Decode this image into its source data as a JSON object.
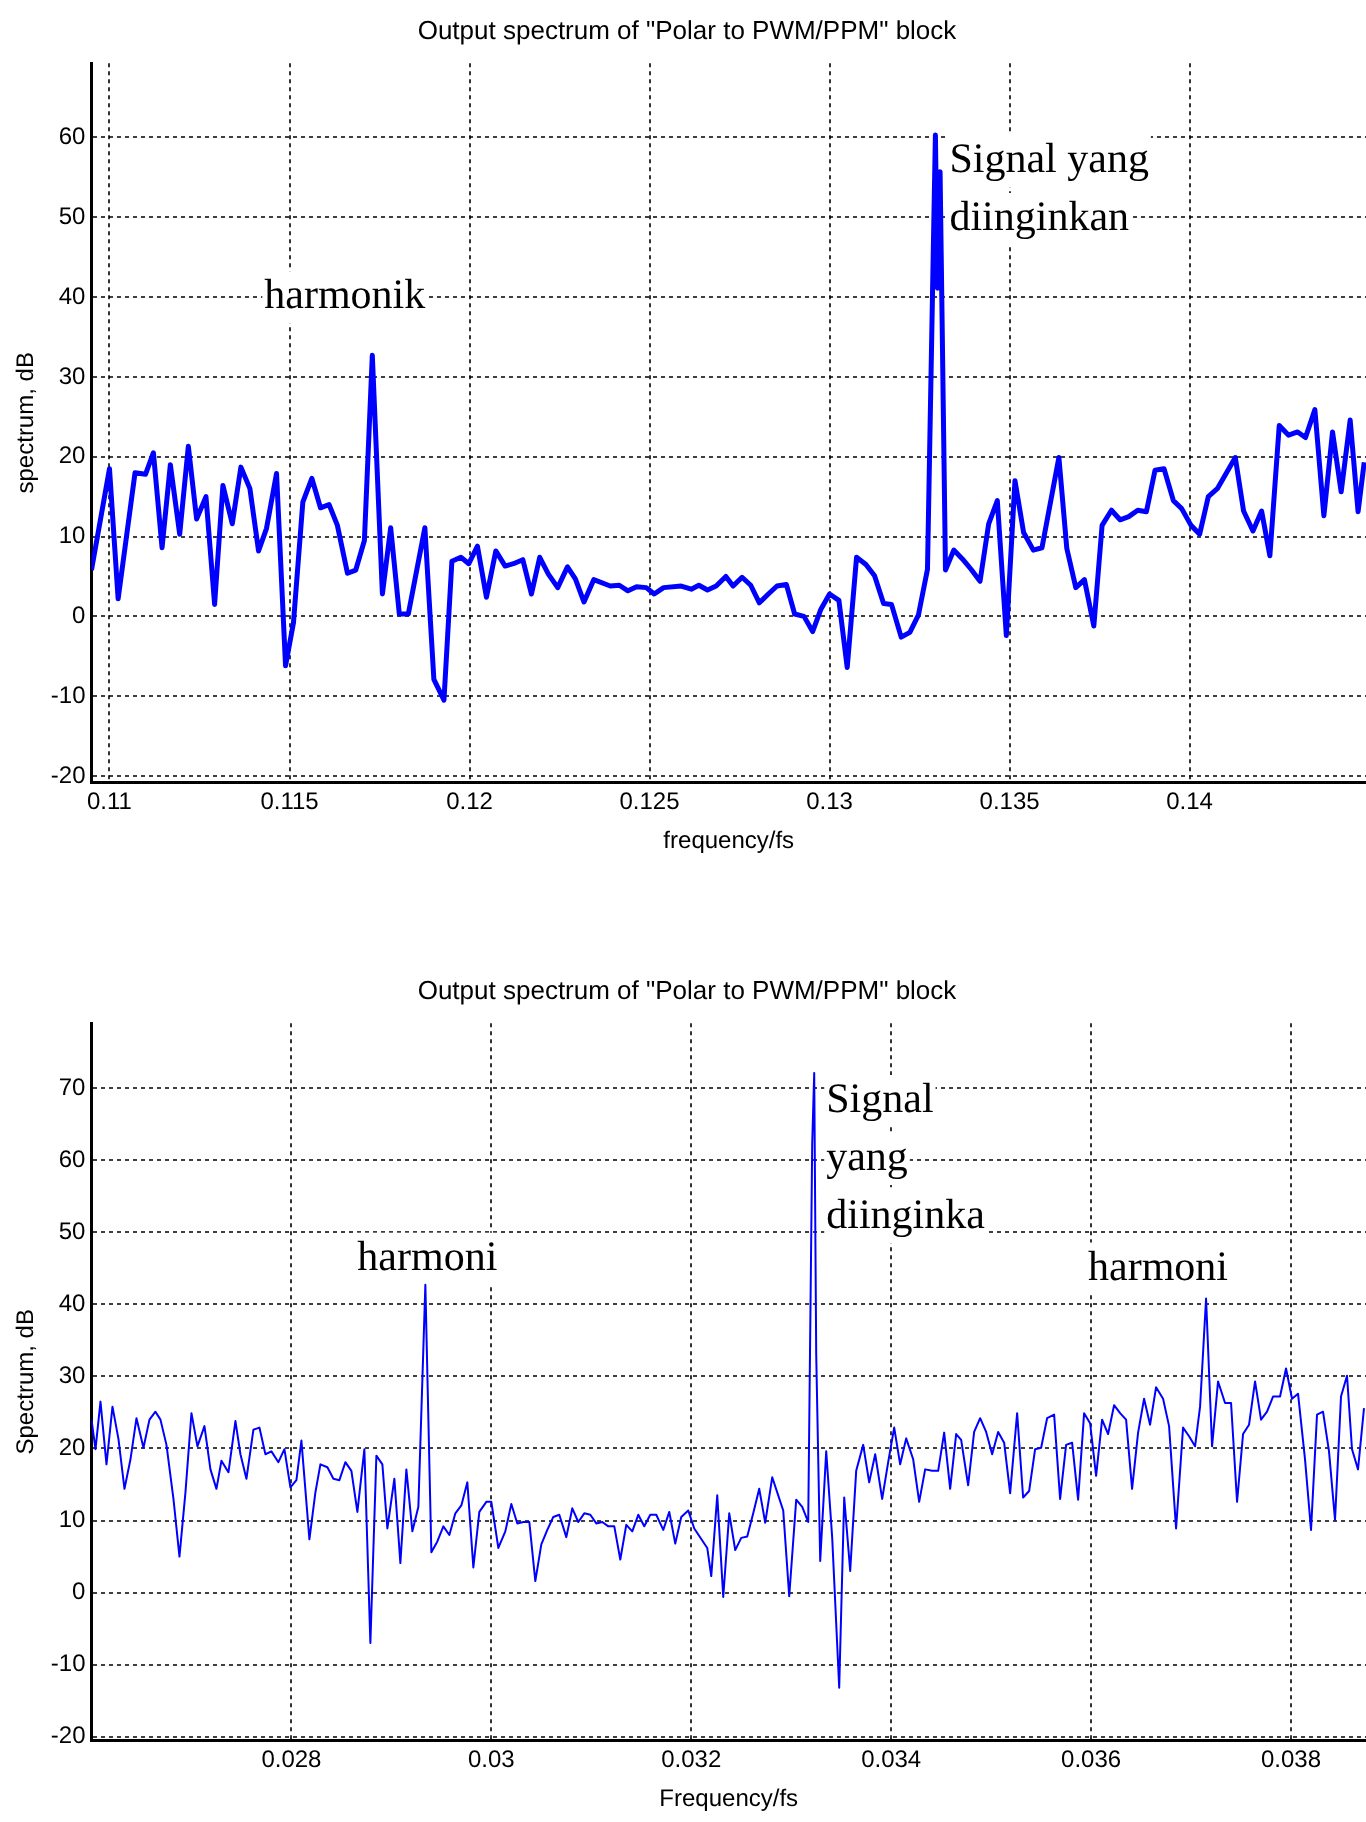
{
  "chart_data": [
    {
      "type": "line",
      "title": "Output spectrum of \"Polar to PWM/PPM\" block",
      "xlabel": "frequency/fs",
      "ylabel": "spectrum, dB",
      "color": "#0000ff",
      "grid": true,
      "xlim": [
        0.1095,
        0.1449
      ],
      "ylim": [
        -20.8,
        69.3
      ],
      "xticks": [
        0.11,
        0.115,
        0.12,
        0.125,
        0.13,
        0.135,
        0.14
      ],
      "yticks": [
        -20,
        -10,
        0,
        10,
        20,
        30,
        40,
        50,
        60
      ],
      "x": [
        0.1095,
        0.11,
        0.11024,
        0.11071,
        0.111,
        0.11122,
        0.11146,
        0.11169,
        0.11195,
        0.11219,
        0.11242,
        0.11268,
        0.11292,
        0.11315,
        0.11341,
        0.11365,
        0.1139,
        0.11414,
        0.11436,
        0.11464,
        0.11489,
        0.11511,
        0.11537,
        0.11562,
        0.11586,
        0.1161,
        0.11633,
        0.11661,
        0.11684,
        0.11708,
        0.1173,
        0.11758,
        0.11781,
        0.11805,
        0.1183,
        0.11876,
        0.11901,
        0.11929,
        0.11951,
        0.11976,
        0.11998,
        0.12022,
        0.12047,
        0.12073,
        0.12099,
        0.12122,
        0.12148,
        0.12172,
        0.12195,
        0.12219,
        0.12245,
        0.12272,
        0.12294,
        0.12318,
        0.12345,
        0.12391,
        0.12416,
        0.1244,
        0.12464,
        0.12491,
        0.12513,
        0.12539,
        0.12588,
        0.12616,
        0.12637,
        0.12661,
        0.12685,
        0.12712,
        0.12732,
        0.12757,
        0.12781,
        0.12805,
        0.1283,
        0.12854,
        0.1288,
        0.12903,
        0.12929,
        0.12953,
        0.12976,
        0.13,
        0.13026,
        0.13049,
        0.13075,
        0.13101,
        0.13125,
        0.1315,
        0.13172,
        0.13199,
        0.13223,
        0.13247,
        0.13272,
        0.13294,
        0.133,
        0.13307,
        0.13322,
        0.13345,
        0.13369,
        0.13393,
        0.13418,
        0.13442,
        0.13466,
        0.13491,
        0.13515,
        0.13539,
        0.13566,
        0.1359,
        0.13637,
        0.13659,
        0.13684,
        0.13708,
        0.13734,
        0.13757,
        0.13783,
        0.13807,
        0.13831,
        0.13856,
        0.1388,
        0.13904,
        0.13929,
        0.13955,
        0.13978,
        0.14004,
        0.14028,
        0.14052,
        0.14077,
        0.14127,
        0.1415,
        0.14176,
        0.142,
        0.14223,
        0.14249,
        0.14275,
        0.143,
        0.14322,
        0.14348,
        0.14373,
        0.14397,
        0.14421,
        0.14446,
        0.14468,
        0.14485
      ],
      "values": [
        5.8,
        18.5,
        2.2,
        18,
        17.8,
        20.5,
        8.6,
        19,
        10.3,
        21.3,
        12.2,
        15,
        1.5,
        16.4,
        11.6,
        18.7,
        16,
        8.2,
        11,
        17.9,
        -6.2,
        -0.8,
        14.3,
        17.3,
        13.6,
        14,
        11.4,
        5.4,
        5.8,
        9.5,
        32.7,
        2.8,
        11.1,
        0.3,
        0.3,
        11.1,
        -7.9,
        -10.5,
        6.9,
        7.4,
        6.6,
        8.8,
        2.4,
        8.2,
        6.3,
        6.6,
        7.1,
        2.8,
        7.4,
        5.3,
        3.6,
        6.2,
        4.7,
        1.8,
        4.6,
        3.8,
        3.9,
        3.2,
        3.7,
        3.6,
        2.8,
        3.6,
        3.8,
        3.4,
        3.9,
        3.3,
        3.8,
        5,
        3.8,
        4.9,
        3.9,
        1.7,
        2.8,
        3.8,
        4,
        0.3,
        0,
        -1.9,
        0.9,
        2.8,
        2,
        -6.4,
        7.4,
        6.5,
        5.1,
        1.6,
        1.5,
        -2.6,
        -2,
        0.2,
        5.9,
        60.3,
        41.1,
        55.7,
        5.8,
        8.3,
        7.2,
        5.9,
        4.4,
        11.6,
        14.5,
        -2.4,
        17,
        10.5,
        8.3,
        8.6,
        19.9,
        8.5,
        3.6,
        4.6,
        -1.2,
        11.4,
        13.3,
        12.1,
        12.5,
        13.3,
        13.1,
        18.3,
        18.5,
        14.5,
        13.5,
        11.4,
        10.3,
        15,
        16,
        19.9,
        13.2,
        10.7,
        13.2,
        7.6,
        23.9,
        22.7,
        23.1,
        22.4,
        25.9,
        12.6,
        23.1,
        15.6,
        24.6,
        13.1,
        19.3
      ],
      "annotations": [
        {
          "text": "harmonik",
          "x": 0.1173,
          "y": 32.7
        },
        {
          "text": "Signal yang diinginkan",
          "x": 0.13294,
          "y": 60.3
        }
      ]
    },
    {
      "type": "line",
      "title": "Output spectrum of \"Polar to PWM/PPM\" block",
      "xlabel": "Frequency/fs",
      "ylabel": "Spectrum, dB",
      "color": "#0000ff",
      "grid": true,
      "xlim": [
        0.026,
        0.03875
      ],
      "ylim": [
        -20.5,
        79
      ],
      "xticks": [
        0.028,
        0.03,
        0.032,
        0.034,
        0.036,
        0.038
      ],
      "yticks": [
        -20,
        -10,
        0,
        10,
        20,
        30,
        40,
        50,
        60,
        70
      ],
      "x": [
        0.026,
        0.02604,
        0.02609,
        0.02615,
        0.02621,
        0.02627,
        0.02633,
        0.02639,
        0.02645,
        0.02652,
        0.02658,
        0.02664,
        0.02669,
        0.02675,
        0.02682,
        0.02688,
        0.02694,
        0.027,
        0.02706,
        0.02713,
        0.02719,
        0.02725,
        0.0273,
        0.02737,
        0.02744,
        0.02749,
        0.02755,
        0.02762,
        0.02768,
        0.02774,
        0.0278,
        0.02787,
        0.02793,
        0.02799,
        0.02805,
        0.0281,
        0.02818,
        0.02824,
        0.02829,
        0.02836,
        0.02842,
        0.02848,
        0.02854,
        0.0286,
        0.02866,
        0.02873,
        0.02879,
        0.02885,
        0.02891,
        0.02896,
        0.02903,
        0.02909,
        0.02915,
        0.02921,
        0.02927,
        0.02934,
        0.0294,
        0.02946,
        0.02952,
        0.02958,
        0.02964,
        0.0297,
        0.02976,
        0.02982,
        0.02988,
        0.02995,
        0.03,
        0.03007,
        0.03014,
        0.0302,
        0.03026,
        0.03032,
        0.03038,
        0.03044,
        0.0305,
        0.03056,
        0.03062,
        0.03068,
        0.03075,
        0.03081,
        0.03087,
        0.03093,
        0.03099,
        0.03105,
        0.03111,
        0.03117,
        0.03123,
        0.03129,
        0.03135,
        0.03141,
        0.03147,
        0.03153,
        0.03159,
        0.03165,
        0.03172,
        0.03178,
        0.03184,
        0.0319,
        0.03197,
        0.03203,
        0.03216,
        0.0322,
        0.03226,
        0.03232,
        0.03238,
        0.03244,
        0.0325,
        0.03256,
        0.03262,
        0.03268,
        0.03274,
        0.03281,
        0.03287,
        0.03292,
        0.03298,
        0.03305,
        0.03311,
        0.03317,
        0.03321,
        0.03323,
        0.03325,
        0.03329,
        0.03335,
        0.03341,
        0.03348,
        0.03353,
        0.03359,
        0.03365,
        0.03372,
        0.03378,
        0.03384,
        0.03391,
        0.03397,
        0.03403,
        0.03409,
        0.03415,
        0.03422,
        0.03428,
        0.03434,
        0.03441,
        0.03447,
        0.03453,
        0.03459,
        0.03465,
        0.0347,
        0.03477,
        0.03483,
        0.03489,
        0.03495,
        0.03501,
        0.03507,
        0.03513,
        0.03519,
        0.03526,
        0.03532,
        0.03538,
        0.03544,
        0.0355,
        0.03556,
        0.03563,
        0.03569,
        0.03575,
        0.03581,
        0.03587,
        0.03593,
        0.03599,
        0.03605,
        0.03611,
        0.03617,
        0.03623,
        0.03629,
        0.03635,
        0.03641,
        0.03647,
        0.03653,
        0.03659,
        0.03665,
        0.03672,
        0.03678,
        0.03685,
        0.03692,
        0.03698,
        0.03704,
        0.03709,
        0.03715,
        0.03721,
        0.03727,
        0.03734,
        0.0374,
        0.03746,
        0.03752,
        0.03758,
        0.03764,
        0.0377,
        0.03776,
        0.03782,
        0.03789,
        0.03795,
        0.03801,
        0.03807,
        0.03814,
        0.0382,
        0.03826,
        0.03832,
        0.03838,
        0.03844,
        0.0385,
        0.03856,
        0.03861,
        0.03867,
        0.03873
      ],
      "values": [
        24,
        19.9,
        26.5,
        17.8,
        25.8,
        21.3,
        14.4,
        18.5,
        24.2,
        20.1,
        24,
        25.1,
        24,
        20.5,
        13,
        5,
        13.9,
        24.9,
        20.3,
        23.1,
        17.1,
        14.4,
        18.3,
        16.7,
        23.8,
        19.2,
        15.8,
        22.6,
        22.9,
        19.2,
        19.6,
        18.1,
        19.9,
        14.6,
        15.6,
        21.1,
        7.4,
        13.9,
        17.8,
        17.4,
        15.8,
        15.6,
        18.1,
        16.9,
        11.2,
        19.9,
        -7,
        19,
        17.8,
        8.9,
        15.8,
        4.1,
        17.1,
        8.5,
        11.9,
        42.7,
        5.6,
        7.1,
        9.2,
        8,
        11,
        12.1,
        15.3,
        3.5,
        11.2,
        12.6,
        12.6,
        6.2,
        8.5,
        12.3,
        9.6,
        9.8,
        9.8,
        1.6,
        6.7,
        8.7,
        10.5,
        10.8,
        7.7,
        11.7,
        9.8,
        11,
        10.8,
        9.6,
        9.8,
        9.2,
        9.2,
        4.6,
        9.4,
        8.5,
        10.8,
        9.2,
        10.8,
        10.8,
        8.7,
        11.2,
        6.8,
        10.5,
        11.4,
        8.9,
        6.2,
        2.3,
        13.5,
        -0.6,
        11,
        5.9,
        7.6,
        7.8,
        11,
        14.4,
        9.7,
        16,
        13.5,
        11.4,
        -0.5,
        12.9,
        11.9,
        9.8,
        62.3,
        72.1,
        33.1,
        4.4,
        19.6,
        7.6,
        -13.2,
        13.2,
        3,
        16.9,
        20.5,
        15.3,
        19.2,
        13,
        18.1,
        22.9,
        17.8,
        21.4,
        18.5,
        12.6,
        17.1,
        16.9,
        16.9,
        22.2,
        14.4,
        22,
        21.2,
        14.9,
        22.3,
        24.2,
        22.3,
        19.2,
        22.3,
        20.8,
        13.8,
        24.9,
        13.2,
        14.1,
        19.9,
        20.1,
        24.2,
        24.7,
        13,
        20.5,
        20.8,
        12.9,
        24.9,
        23.5,
        16.2,
        24,
        22,
        26,
        24.9,
        24,
        14.4,
        22.2,
        26.9,
        23.3,
        28.5,
        26.9,
        23.1,
        8.9,
        22.9,
        21.7,
        20.3,
        25.8,
        40.8,
        20.3,
        29.3,
        26.3,
        26.3,
        12.6,
        22,
        23.3,
        29.3,
        24,
        25.1,
        27.2,
        27.2,
        31.1,
        26.9,
        27.6,
        18.5,
        8.7,
        24.7,
        25.1,
        19.6,
        10.1,
        27.2,
        30.1,
        19.9,
        17.1,
        25.6
      ],
      "annotations": [
        {
          "text": "harmoni",
          "x": 0.02934,
          "y": 42.7
        },
        {
          "text": "Signal yang diinginka",
          "x": 0.03323,
          "y": 72.1
        },
        {
          "text": "harmoni",
          "x": 0.03715,
          "y": 40.8
        }
      ]
    }
  ]
}
